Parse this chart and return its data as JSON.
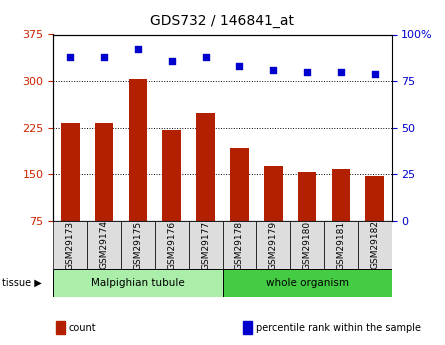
{
  "title": "GDS732 / 146841_at",
  "categories": [
    "GSM29173",
    "GSM29174",
    "GSM29175",
    "GSM29176",
    "GSM29177",
    "GSM29178",
    "GSM29179",
    "GSM29180",
    "GSM29181",
    "GSM29182"
  ],
  "bar_values": [
    232,
    232,
    303,
    222,
    248,
    193,
    163,
    153,
    158,
    147
  ],
  "dot_values": [
    88,
    88,
    92,
    86,
    88,
    83,
    81,
    80,
    80,
    79
  ],
  "bar_color": "#b22000",
  "dot_color": "#0000cc",
  "ylim_left": [
    75,
    375
  ],
  "ylim_right": [
    0,
    100
  ],
  "yticks_left": [
    75,
    150,
    225,
    300,
    375
  ],
  "yticks_right": [
    0,
    25,
    50,
    75,
    100
  ],
  "yticklabels_right": [
    "0",
    "25",
    "50",
    "75",
    "100%"
  ],
  "grid_values": [
    150,
    225,
    300
  ],
  "tissue_groups": [
    {
      "label": "Malpighian tubule",
      "start": 0,
      "end": 5,
      "color": "#aaeeaa"
    },
    {
      "label": "whole organism",
      "start": 5,
      "end": 10,
      "color": "#44cc44"
    }
  ],
  "legend_items": [
    {
      "label": "count",
      "color": "#b22000"
    },
    {
      "label": "percentile rank within the sample",
      "color": "#0000cc"
    }
  ],
  "tissue_label": "tissue",
  "tick_label_color_left": "#cc2200",
  "tick_label_color_right": "#0000cc",
  "bar_width": 0.55
}
